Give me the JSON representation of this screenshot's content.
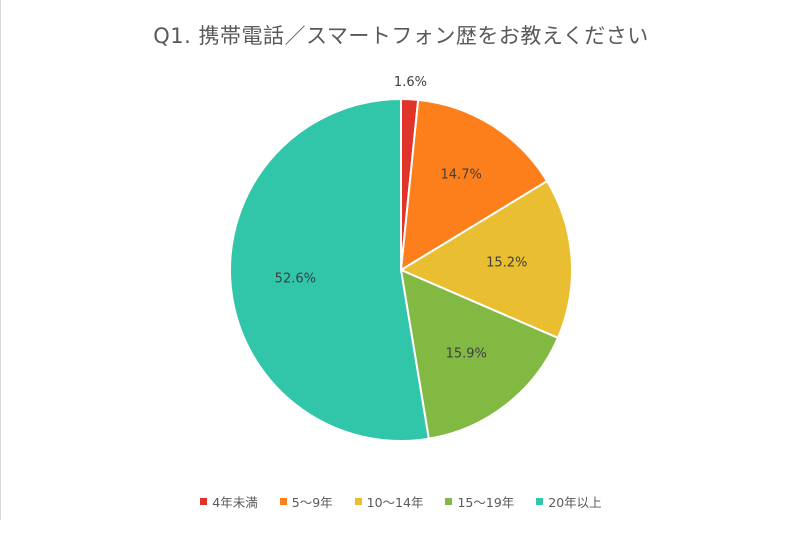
{
  "chart_data": {
    "type": "pie",
    "title": "Q1. 携帯電話／スマートフォン歴をお教えください",
    "categories": [
      "4年未満",
      "5〜9年",
      "10〜14年",
      "15〜19年",
      "20年以上"
    ],
    "values": [
      1.6,
      14.7,
      15.2,
      15.9,
      52.6
    ],
    "labels": [
      "1.6%",
      "14.7%",
      "15.2%",
      "15.9%",
      "52.6%"
    ],
    "colors": [
      "#e0332a",
      "#fd7f1c",
      "#e9be31",
      "#82b943",
      "#31c6aa"
    ],
    "legend_position": "bottom",
    "start_angle": "12 o'clock",
    "direction": "clockwise"
  }
}
